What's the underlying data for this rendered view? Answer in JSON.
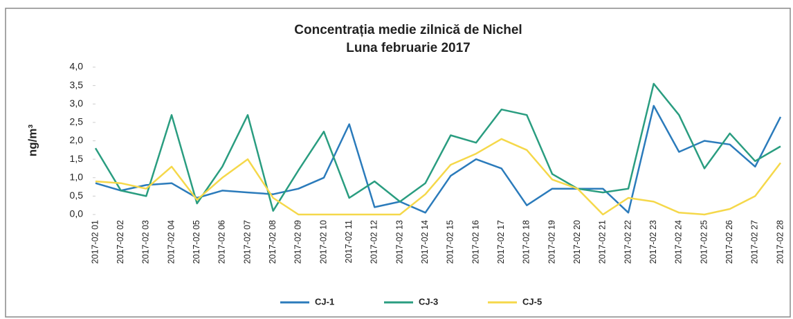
{
  "chart_data": {
    "type": "line",
    "title": "Concentrația medie zilnică de Nichel",
    "subtitle": "Luna februarie 2017",
    "y_label": "ng/m³",
    "categories": [
      "2017-02 01",
      "2017-02 02",
      "2017-02 03",
      "2017-02 04",
      "2017-02 05",
      "2017-02 06",
      "2017-02 07",
      "2017-02 08",
      "2017-02 09",
      "2017-02 10",
      "2017-02 11",
      "2017-02 12",
      "2017-02 13",
      "2017-02 14",
      "2017-02 15",
      "2017-02 16",
      "2017-02 17",
      "2017-02 18",
      "2017-02 19",
      "2017-02 20",
      "2017-02 21",
      "2017-02 22",
      "2017-02 23",
      "2017-02 24",
      "2017-02 25",
      "2017-02 26",
      "2017-02 27",
      "2017-02 28"
    ],
    "series": [
      {
        "name": "CJ-1",
        "color": "#2b7bbb",
        "values": [
          0.85,
          0.65,
          0.8,
          0.85,
          0.45,
          0.65,
          0.6,
          0.55,
          0.7,
          1.0,
          2.45,
          0.2,
          0.35,
          0.05,
          1.05,
          1.5,
          1.25,
          0.25,
          0.7,
          0.7,
          0.7,
          0.05,
          2.95,
          1.7,
          2.0,
          1.9,
          1.3,
          2.65
        ]
      },
      {
        "name": "CJ-3",
        "color": "#2a9d80",
        "values": [
          1.8,
          0.65,
          0.5,
          2.7,
          0.3,
          1.3,
          2.7,
          0.1,
          1.2,
          2.25,
          0.45,
          0.9,
          0.35,
          0.85,
          2.15,
          1.95,
          2.85,
          2.7,
          1.1,
          0.7,
          0.6,
          0.7,
          3.55,
          2.7,
          1.25,
          2.2,
          1.45,
          1.85
        ]
      },
      {
        "name": "CJ-5",
        "color": "#f5d84a",
        "values": [
          0.9,
          0.85,
          0.7,
          1.3,
          0.4,
          1.0,
          1.5,
          0.45,
          0.0,
          0.0,
          0.0,
          0.0,
          0.0,
          0.55,
          1.35,
          1.65,
          2.05,
          1.75,
          0.95,
          0.7,
          0.0,
          0.45,
          0.35,
          0.05,
          0.0,
          0.15,
          0.5,
          1.4
        ]
      }
    ],
    "ylim": [
      0,
      4
    ],
    "yticks": [
      {
        "value": 0,
        "label": "0,0"
      },
      {
        "value": 0.5,
        "label": "0,5"
      },
      {
        "value": 1,
        "label": "1,0"
      },
      {
        "value": 1.5,
        "label": "1,5"
      },
      {
        "value": 2,
        "label": "2,0"
      },
      {
        "value": 2.5,
        "label": "2,5"
      },
      {
        "value": 3,
        "label": "3,0"
      },
      {
        "value": 3.5,
        "label": "3,5"
      },
      {
        "value": 4,
        "label": "4,0"
      }
    ],
    "grid": false,
    "legend": "bottom"
  }
}
